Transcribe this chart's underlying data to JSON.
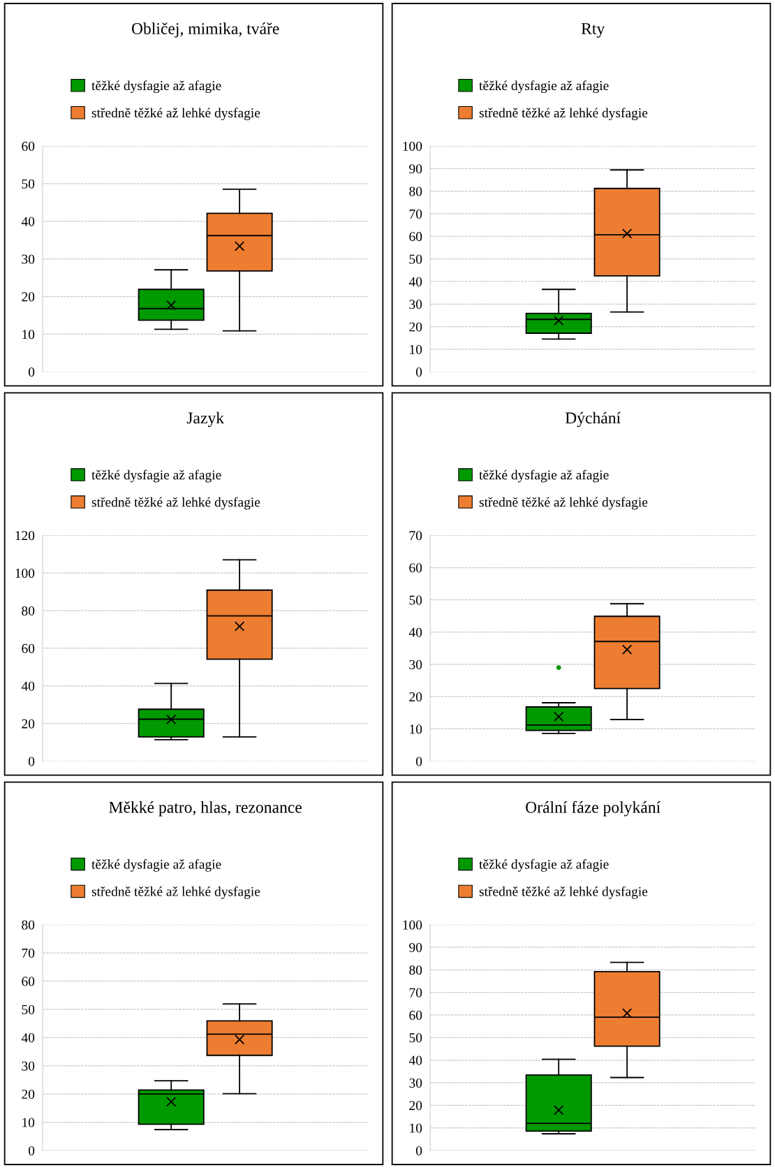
{
  "chart_data": [
    {
      "type": "box",
      "title": "Obličej, mimika, tváře",
      "categories": [
        null
      ],
      "ylim": [
        0,
        60
      ],
      "yticks": [
        0,
        10,
        20,
        30,
        40,
        50,
        60
      ],
      "grid": "y",
      "legend": "top",
      "series": [
        {
          "name": "těžké dysfagie až afagie",
          "color": "#009900",
          "boxes": [
            {
              "low": 11.3,
              "q1": 13.7,
              "median": 16.8,
              "q3": 21.9,
              "high": 27.1,
              "mean": 17.7
            }
          ]
        },
        {
          "name": "středně těžké až lehké dysfagie",
          "color": "#ed7d31",
          "boxes": [
            {
              "low": 10.9,
              "q1": 26.8,
              "median": 36.2,
              "q3": 42.1,
              "high": 48.5,
              "mean": 33.4
            }
          ]
        }
      ]
    },
    {
      "type": "box",
      "title": "Rty",
      "categories": [
        null
      ],
      "ylim": [
        0,
        100
      ],
      "yticks": [
        0,
        10,
        20,
        30,
        40,
        50,
        60,
        70,
        80,
        90,
        100
      ],
      "grid": "y",
      "legend": "top",
      "series": [
        {
          "name": "těžké dysfagie až afagie",
          "color": "#009900",
          "boxes": [
            {
              "low": 14.5,
              "q1": 17.1,
              "median": 23.2,
              "q3": 25.9,
              "high": 36.5,
              "mean": 22.7
            }
          ]
        },
        {
          "name": "středně těžké až lehké dysfagie",
          "color": "#ed7d31",
          "boxes": [
            {
              "low": 26.5,
              "q1": 42.5,
              "median": 60.7,
              "q3": 81.2,
              "high": 89.4,
              "mean": 61.2
            }
          ]
        }
      ]
    },
    {
      "type": "box",
      "title": "Jazyk",
      "categories": [
        null
      ],
      "ylim": [
        0,
        120
      ],
      "yticks": [
        0,
        20,
        40,
        60,
        80,
        100,
        120
      ],
      "grid": "y",
      "legend": "top",
      "series": [
        {
          "name": "těžké dysfagie až afagie",
          "color": "#009900",
          "boxes": [
            {
              "low": 11.4,
              "q1": 12.9,
              "median": 22.3,
              "q3": 27.6,
              "high": 41.3,
              "mean": 22.2
            }
          ]
        },
        {
          "name": "středně těžké až lehké dysfagie",
          "color": "#ed7d31",
          "boxes": [
            {
              "low": 12.9,
              "q1": 54.2,
              "median": 77.2,
              "q3": 90.9,
              "high": 107,
              "mean": 71.6
            }
          ]
        }
      ]
    },
    {
      "type": "box",
      "title": "Dýchání",
      "categories": [
        null
      ],
      "ylim": [
        0,
        70
      ],
      "yticks": [
        0,
        10,
        20,
        30,
        40,
        50,
        60,
        70
      ],
      "grid": "y",
      "legend": "top",
      "series": [
        {
          "name": "těžké dysfagie až afagie",
          "color": "#009900",
          "boxes": [
            {
              "low": 8.6,
              "q1": 9.5,
              "median": 11.2,
              "q3": 16.8,
              "high": 18.1,
              "mean": 13.8,
              "outliers": [
                29.0
              ]
            }
          ]
        },
        {
          "name": "středně těžké až lehké dysfagie",
          "color": "#ed7d31",
          "boxes": [
            {
              "low": 12.9,
              "q1": 22.5,
              "median": 37.1,
              "q3": 44.9,
              "high": 48.8,
              "mean": 34.6
            }
          ]
        }
      ]
    },
    {
      "type": "box",
      "title": "Měkké patro, hlas, rezonance",
      "categories": [
        null
      ],
      "ylim": [
        0,
        80
      ],
      "yticks": [
        0,
        10,
        20,
        30,
        40,
        50,
        60,
        70,
        80
      ],
      "grid": "y",
      "legend": "top",
      "series": [
        {
          "name": "těžké dysfagie až afagie",
          "color": "#009900",
          "boxes": [
            {
              "low": 7.4,
              "q1": 9.3,
              "median": 20.0,
              "q3": 21.4,
              "high": 24.7,
              "mean": 17.3
            }
          ]
        },
        {
          "name": "středně těžké až lehké dysfagie",
          "color": "#ed7d31",
          "boxes": [
            {
              "low": 20.1,
              "q1": 33.7,
              "median": 41.2,
              "q3": 45.9,
              "high": 51.9,
              "mean": 39.3
            }
          ]
        }
      ]
    },
    {
      "type": "box",
      "title": "Orální fáze polykání",
      "categories": [
        null
      ],
      "ylim": [
        0,
        100
      ],
      "yticks": [
        0,
        10,
        20,
        30,
        40,
        50,
        60,
        70,
        80,
        90,
        100
      ],
      "grid": "y",
      "legend": "top",
      "series": [
        {
          "name": "těžké dysfagie až afagie",
          "color": "#009900",
          "boxes": [
            {
              "low": 7.4,
              "q1": 8.6,
              "median": 12.0,
              "q3": 33.4,
              "high": 40.4,
              "mean": 17.9
            }
          ]
        },
        {
          "name": "středně těžké až lehké dysfagie",
          "color": "#ed7d31",
          "boxes": [
            {
              "low": 32.3,
              "q1": 46.2,
              "median": 59.0,
              "q3": 79.2,
              "high": 83.3,
              "mean": 60.8
            }
          ]
        }
      ]
    }
  ]
}
